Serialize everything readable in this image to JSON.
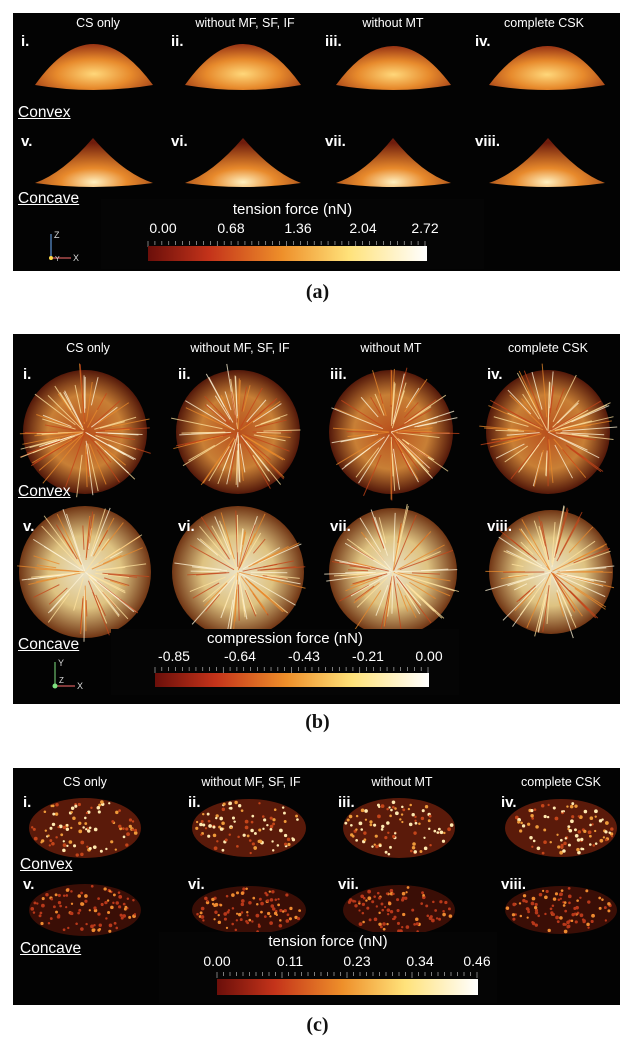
{
  "colors": {
    "panel_bg": "#030303",
    "gradient_stops": [
      "#6b0f0a",
      "#c4331a",
      "#ee8f2a",
      "#ffe27a",
      "#ffffff"
    ],
    "cells": {
      "hot": "#ffe9a8",
      "mid": "#e58a2c",
      "dark": "#7a220f"
    }
  },
  "figure_a": {
    "caption": "(a)",
    "column_headers": [
      "CS only",
      "without MF, SF, IF",
      "without MT",
      "complete CSK"
    ],
    "row_labels": [
      "Convex",
      "Concave"
    ],
    "numerals": [
      "i.",
      "ii.",
      "iii.",
      "iv.",
      "v.",
      "vi.",
      "vii.",
      "viii."
    ],
    "colorbar": {
      "title": "tension force (nN)",
      "ticks": [
        "0.00",
        "0.68",
        "1.36",
        "2.04",
        "2.72"
      ]
    },
    "axes": {
      "vertical": "Z",
      "horizontal": "X",
      "depth": "Y"
    }
  },
  "figure_b": {
    "caption": "(b)",
    "column_headers": [
      "CS only",
      "without MF, SF, IF",
      "without MT",
      "complete CSK"
    ],
    "row_labels": [
      "Convex",
      "Concave"
    ],
    "numerals": [
      "i.",
      "ii.",
      "iii.",
      "iv.",
      "v.",
      "vi.",
      "vii.",
      "viii."
    ],
    "colorbar": {
      "title": "compression force (nN)",
      "ticks": [
        "-0.85",
        "-0.64",
        "-0.43",
        "-0.21",
        "0.00"
      ]
    },
    "axes": {
      "vertical": "Y",
      "horizontal": "X",
      "depth": "Z"
    }
  },
  "figure_c": {
    "caption": "(c)",
    "column_headers": [
      "CS only",
      "without MF, SF, IF",
      "without MT",
      "complete CSK"
    ],
    "row_labels": [
      "Convex",
      "Concave"
    ],
    "numerals": [
      "i.",
      "ii.",
      "iii.",
      "iv.",
      "v.",
      "vi.",
      "vii.",
      "viii."
    ],
    "colorbar": {
      "title": "tension force (nN)",
      "ticks": [
        "0.00",
        "0.11",
        "0.23",
        "0.34",
        "0.46"
      ]
    }
  }
}
